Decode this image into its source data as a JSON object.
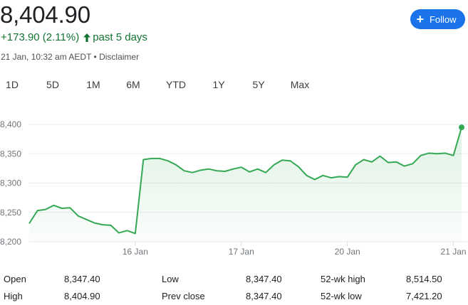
{
  "header": {
    "price": "8,404.90",
    "change": "+173.90 (2.11%)",
    "period": "past 5 days",
    "timestamp": "21 Jan, 10:32 am AEDT",
    "separator": " • ",
    "disclaimer": "Disclaimer",
    "follow_label": "Follow",
    "positive_color": "#137333",
    "accent_color": "#1a73e8"
  },
  "tabs": [
    {
      "label": "1D",
      "active": false
    },
    {
      "label": "5D",
      "active": true
    },
    {
      "label": "1M",
      "active": false
    },
    {
      "label": "6M",
      "active": false
    },
    {
      "label": "YTD",
      "active": false
    },
    {
      "label": "1Y",
      "active": false
    },
    {
      "label": "5Y",
      "active": false
    },
    {
      "label": "Max",
      "active": false
    }
  ],
  "chart_data": {
    "type": "area",
    "title": "",
    "xlabel": "",
    "ylabel": "",
    "ylim": [
      8200,
      8410
    ],
    "yticks": [
      8200,
      8250,
      8300,
      8350,
      8400
    ],
    "ytick_labels": [
      "8,200",
      "8,250",
      "8,300",
      "8,350",
      "8,400"
    ],
    "xticks": [
      {
        "label": "16 Jan",
        "index": 13
      },
      {
        "label": "17 Jan",
        "index": 26
      },
      {
        "label": "20 Jan",
        "index": 39
      },
      {
        "label": "21 Jan",
        "index": 52
      }
    ],
    "grid": true,
    "line_color": "#34a853",
    "series": [
      {
        "name": "",
        "values": [
          8231,
          8253,
          8255,
          8262,
          8257,
          8258,
          8244,
          8238,
          8232,
          8229,
          8228,
          8215,
          8219,
          8214,
          8340,
          8342,
          8342,
          8338,
          8331,
          8321,
          8318,
          8322,
          8324,
          8321,
          8320,
          8324,
          8327,
          8319,
          8324,
          8318,
          8331,
          8339,
          8338,
          8328,
          8313,
          8306,
          8313,
          8309,
          8311,
          8310,
          8331,
          8340,
          8336,
          8346,
          8335,
          8336,
          8329,
          8333,
          8347,
          8351,
          8350,
          8351,
          8347,
          8395
        ]
      }
    ]
  },
  "stats": [
    {
      "label": "Open",
      "value": "8,347.40"
    },
    {
      "label": "High",
      "value": "8,404.90"
    },
    {
      "label": "Low",
      "value": "8,347.40"
    },
    {
      "label": "Prev close",
      "value": "8,347.40"
    },
    {
      "label": "52-wk high",
      "value": "8,514.50"
    },
    {
      "label": "52-wk low",
      "value": "7,421.20"
    }
  ]
}
